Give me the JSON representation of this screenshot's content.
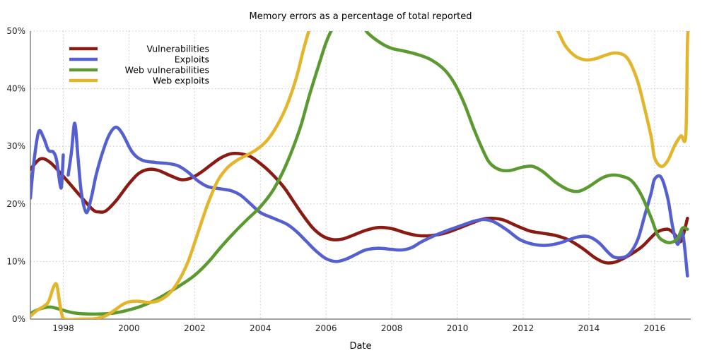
{
  "chart_data": {
    "type": "line",
    "title": "Memory errors as a percentage of total reported",
    "xlabel": "Date",
    "ylabel": "",
    "xlim": [
      1997.0,
      2017.1
    ],
    "ylim": [
      0,
      50
    ],
    "x_ticks": [
      1998,
      2000,
      2002,
      2004,
      2006,
      2008,
      2010,
      2012,
      2014,
      2016
    ],
    "y_ticks": [
      0,
      10,
      20,
      30,
      40,
      50
    ],
    "y_tick_labels": [
      "0%",
      "10%",
      "20%",
      "30%",
      "40%",
      "50%"
    ],
    "grid": true,
    "legend_position": "top-left",
    "series": [
      {
        "name": "Vulnerabilities",
        "color": "#8B1A12",
        "points": [
          [
            1997.0,
            26
          ],
          [
            1997.3,
            27.8
          ],
          [
            1997.6,
            27.2
          ],
          [
            1998.0,
            24.8
          ],
          [
            1998.5,
            21.5
          ],
          [
            1998.9,
            19
          ],
          [
            1999.1,
            18.6
          ],
          [
            1999.3,
            18.8
          ],
          [
            1999.6,
            20.5
          ],
          [
            2000.0,
            23.5
          ],
          [
            2000.3,
            25.3
          ],
          [
            2000.6,
            26
          ],
          [
            2000.9,
            25.8
          ],
          [
            2001.3,
            24.8
          ],
          [
            2001.6,
            24.2
          ],
          [
            2001.9,
            24.5
          ],
          [
            2002.2,
            25.5
          ],
          [
            2002.5,
            26.8
          ],
          [
            2002.8,
            28
          ],
          [
            2003.1,
            28.7
          ],
          [
            2003.4,
            28.7
          ],
          [
            2003.7,
            28.2
          ],
          [
            2004.0,
            27
          ],
          [
            2004.3,
            25.5
          ],
          [
            2004.7,
            23
          ],
          [
            2005.0,
            20.5
          ],
          [
            2005.3,
            18
          ],
          [
            2005.6,
            15.8
          ],
          [
            2005.9,
            14.4
          ],
          [
            2006.2,
            13.8
          ],
          [
            2006.5,
            13.9
          ],
          [
            2006.8,
            14.5
          ],
          [
            2007.2,
            15.4
          ],
          [
            2007.6,
            15.9
          ],
          [
            2008.0,
            15.7
          ],
          [
            2008.4,
            15
          ],
          [
            2008.8,
            14.5
          ],
          [
            2009.2,
            14.5
          ],
          [
            2009.6,
            14.9
          ],
          [
            2010.0,
            15.7
          ],
          [
            2010.4,
            16.6
          ],
          [
            2010.8,
            17.4
          ],
          [
            2011.1,
            17.5
          ],
          [
            2011.4,
            17.2
          ],
          [
            2011.8,
            16.2
          ],
          [
            2012.2,
            15.3
          ],
          [
            2012.6,
            14.9
          ],
          [
            2013.0,
            14.5
          ],
          [
            2013.4,
            13.7
          ],
          [
            2013.8,
            12.3
          ],
          [
            2014.2,
            10.6
          ],
          [
            2014.5,
            9.8
          ],
          [
            2014.8,
            9.9
          ],
          [
            2015.2,
            11
          ],
          [
            2015.6,
            12.5
          ],
          [
            2015.9,
            14.2
          ],
          [
            2016.1,
            15.2
          ],
          [
            2016.4,
            15.6
          ],
          [
            2016.6,
            14.8
          ],
          [
            2016.8,
            13.5
          ],
          [
            2017.0,
            17.5
          ]
        ]
      },
      {
        "name": "Exploits",
        "color": "#5560D0",
        "segments": [
          [
            [
              1997.0,
              21
            ],
            [
              1997.1,
              27
            ],
            [
              1997.25,
              32.5
            ],
            [
              1997.4,
              31.5
            ],
            [
              1997.55,
              29.3
            ],
            [
              1997.7,
              29
            ],
            [
              1997.8,
              27.5
            ],
            [
              1997.9,
              23.5
            ],
            [
              1997.95,
              23.2
            ],
            [
              1998.0,
              28.5
            ]
          ],
          [
            [
              1998.15,
              25
            ],
            [
              1998.25,
              29
            ],
            [
              1998.35,
              34
            ],
            [
              1998.45,
              28
            ],
            [
              1998.55,
              22
            ],
            [
              1998.7,
              18.5
            ],
            [
              1998.85,
              21
            ],
            [
              1999.0,
              25
            ],
            [
              1999.2,
              29
            ],
            [
              1999.4,
              32
            ],
            [
              1999.6,
              33.3
            ],
            [
              1999.8,
              32.2
            ],
            [
              2000.1,
              29
            ],
            [
              2000.4,
              27.6
            ],
            [
              2000.8,
              27.2
            ],
            [
              2001.2,
              27
            ],
            [
              2001.5,
              26.6
            ],
            [
              2001.8,
              25.5
            ],
            [
              2002.1,
              24
            ],
            [
              2002.4,
              23
            ],
            [
              2002.8,
              22.6
            ],
            [
              2003.1,
              22.3
            ],
            [
              2003.4,
              21.5
            ],
            [
              2003.7,
              20
            ],
            [
              2004.0,
              18.5
            ],
            [
              2004.4,
              17.5
            ],
            [
              2004.8,
              16.5
            ],
            [
              2005.1,
              15.2
            ],
            [
              2005.4,
              13.5
            ],
            [
              2005.7,
              11.8
            ],
            [
              2006.0,
              10.5
            ],
            [
              2006.3,
              10
            ],
            [
              2006.6,
              10.4
            ],
            [
              2006.9,
              11.2
            ],
            [
              2007.2,
              12
            ],
            [
              2007.6,
              12.3
            ],
            [
              2008.0,
              12.1
            ],
            [
              2008.3,
              12
            ],
            [
              2008.6,
              12.4
            ],
            [
              2008.9,
              13.4
            ],
            [
              2009.3,
              14.5
            ],
            [
              2009.7,
              15.4
            ],
            [
              2010.1,
              16.2
            ],
            [
              2010.5,
              17
            ],
            [
              2010.8,
              17.3
            ],
            [
              2011.1,
              16.9
            ],
            [
              2011.5,
              15.5
            ],
            [
              2011.9,
              13.8
            ],
            [
              2012.3,
              13
            ],
            [
              2012.7,
              12.8
            ],
            [
              2013.1,
              13.2
            ],
            [
              2013.4,
              13.8
            ],
            [
              2013.7,
              14.3
            ],
            [
              2014.0,
              14.3
            ],
            [
              2014.3,
              13.3
            ],
            [
              2014.6,
              11.5
            ],
            [
              2014.8,
              10.7
            ],
            [
              2015.1,
              10.8
            ],
            [
              2015.3,
              11.8
            ],
            [
              2015.5,
              14
            ],
            [
              2015.7,
              18
            ],
            [
              2015.9,
              22
            ],
            [
              2016.0,
              24.3
            ],
            [
              2016.2,
              24.6
            ],
            [
              2016.4,
              21
            ],
            [
              2016.55,
              16
            ],
            [
              2016.7,
              13
            ],
            [
              2016.85,
              15
            ],
            [
              2017.0,
              7.5
            ]
          ]
        ]
      },
      {
        "name": "Web vulnerabilities",
        "color": "#5A9A30",
        "points": [
          [
            1997.0,
            1
          ],
          [
            1997.3,
            1.8
          ],
          [
            1997.6,
            2.1
          ],
          [
            1997.9,
            1.7
          ],
          [
            1998.3,
            1.1
          ],
          [
            1998.7,
            0.9
          ],
          [
            1999.2,
            0.9
          ],
          [
            1999.6,
            1.1
          ],
          [
            2000.0,
            1.6
          ],
          [
            2000.4,
            2.3
          ],
          [
            2000.8,
            3.3
          ],
          [
            2001.2,
            4.6
          ],
          [
            2001.6,
            6
          ],
          [
            2002.0,
            7.6
          ],
          [
            2002.4,
            9.8
          ],
          [
            2002.8,
            12.5
          ],
          [
            2003.2,
            15
          ],
          [
            2003.6,
            17.3
          ],
          [
            2004.0,
            19.5
          ],
          [
            2004.4,
            22.5
          ],
          [
            2004.8,
            27
          ],
          [
            2005.2,
            33
          ],
          [
            2005.5,
            39
          ],
          [
            2005.8,
            44.5
          ],
          [
            2006.0,
            48
          ],
          [
            2006.2,
            50.5
          ],
          [
            2006.3,
            51
          ]
        ],
        "continuation": [
          [
            2007.1,
            51
          ],
          [
            2007.3,
            49.5
          ],
          [
            2007.7,
            47.8
          ],
          [
            2008.0,
            47
          ],
          [
            2008.4,
            46.5
          ],
          [
            2008.8,
            45.9
          ],
          [
            2009.2,
            45
          ],
          [
            2009.6,
            43.3
          ],
          [
            2009.9,
            41
          ],
          [
            2010.2,
            37.5
          ],
          [
            2010.5,
            33
          ],
          [
            2010.8,
            29
          ],
          [
            2011.0,
            27
          ],
          [
            2011.3,
            25.9
          ],
          [
            2011.6,
            25.8
          ],
          [
            2012.0,
            26.4
          ],
          [
            2012.3,
            26.5
          ],
          [
            2012.6,
            25.6
          ],
          [
            2013.0,
            23.7
          ],
          [
            2013.4,
            22.4
          ],
          [
            2013.7,
            22.2
          ],
          [
            2014.0,
            23
          ],
          [
            2014.4,
            24.5
          ],
          [
            2014.7,
            25
          ],
          [
            2015.0,
            24.8
          ],
          [
            2015.3,
            24
          ],
          [
            2015.6,
            21.5
          ],
          [
            2015.9,
            17.5
          ],
          [
            2016.1,
            14.5
          ],
          [
            2016.3,
            13.5
          ],
          [
            2016.5,
            13.3
          ],
          [
            2016.7,
            14
          ],
          [
            2016.85,
            15.8
          ],
          [
            2017.0,
            15.6
          ]
        ]
      },
      {
        "name": "Web exploits",
        "color": "#E3B52A",
        "points": [
          [
            1997.0,
            0.5
          ],
          [
            1997.2,
            1.5
          ],
          [
            1997.4,
            2.2
          ],
          [
            1997.55,
            3
          ],
          [
            1997.7,
            5.5
          ],
          [
            1997.8,
            6
          ],
          [
            1997.88,
            3.2
          ],
          [
            1997.95,
            1
          ],
          [
            1998.05,
            0
          ],
          [
            1998.5,
            0
          ],
          [
            1999.0,
            0.1
          ],
          [
            1999.3,
            0.6
          ],
          [
            1999.55,
            1.5
          ],
          [
            1999.8,
            2.5
          ],
          [
            2000.0,
            3
          ],
          [
            2000.3,
            3.1
          ],
          [
            2000.6,
            2.9
          ],
          [
            2000.9,
            3.2
          ],
          [
            2001.2,
            4.3
          ],
          [
            2001.5,
            6.5
          ],
          [
            2001.8,
            10
          ],
          [
            2002.1,
            15
          ],
          [
            2002.4,
            20
          ],
          [
            2002.7,
            24
          ],
          [
            2003.0,
            26.3
          ],
          [
            2003.3,
            27.6
          ],
          [
            2003.6,
            28.5
          ],
          [
            2003.9,
            29.5
          ],
          [
            2004.2,
            31
          ],
          [
            2004.5,
            33.5
          ],
          [
            2004.8,
            37
          ],
          [
            2005.1,
            42
          ],
          [
            2005.3,
            46.5
          ],
          [
            2005.5,
            50.5
          ],
          [
            2005.6,
            52
          ]
        ],
        "continuation": [
          [
            2012.9,
            52
          ],
          [
            2013.1,
            49.5
          ],
          [
            2013.3,
            47.3
          ],
          [
            2013.6,
            45.6
          ],
          [
            2013.9,
            45
          ],
          [
            2014.2,
            45.2
          ],
          [
            2014.5,
            45.8
          ],
          [
            2014.8,
            46.2
          ],
          [
            2015.1,
            45.7
          ],
          [
            2015.3,
            44
          ],
          [
            2015.5,
            41
          ],
          [
            2015.7,
            36.5
          ],
          [
            2015.9,
            31.5
          ],
          [
            2016.0,
            28
          ],
          [
            2016.2,
            26.5
          ],
          [
            2016.4,
            27.5
          ],
          [
            2016.6,
            30
          ],
          [
            2016.8,
            31.8
          ],
          [
            2016.95,
            32
          ],
          [
            2017.0,
            48
          ],
          [
            2017.05,
            52
          ]
        ]
      }
    ]
  }
}
